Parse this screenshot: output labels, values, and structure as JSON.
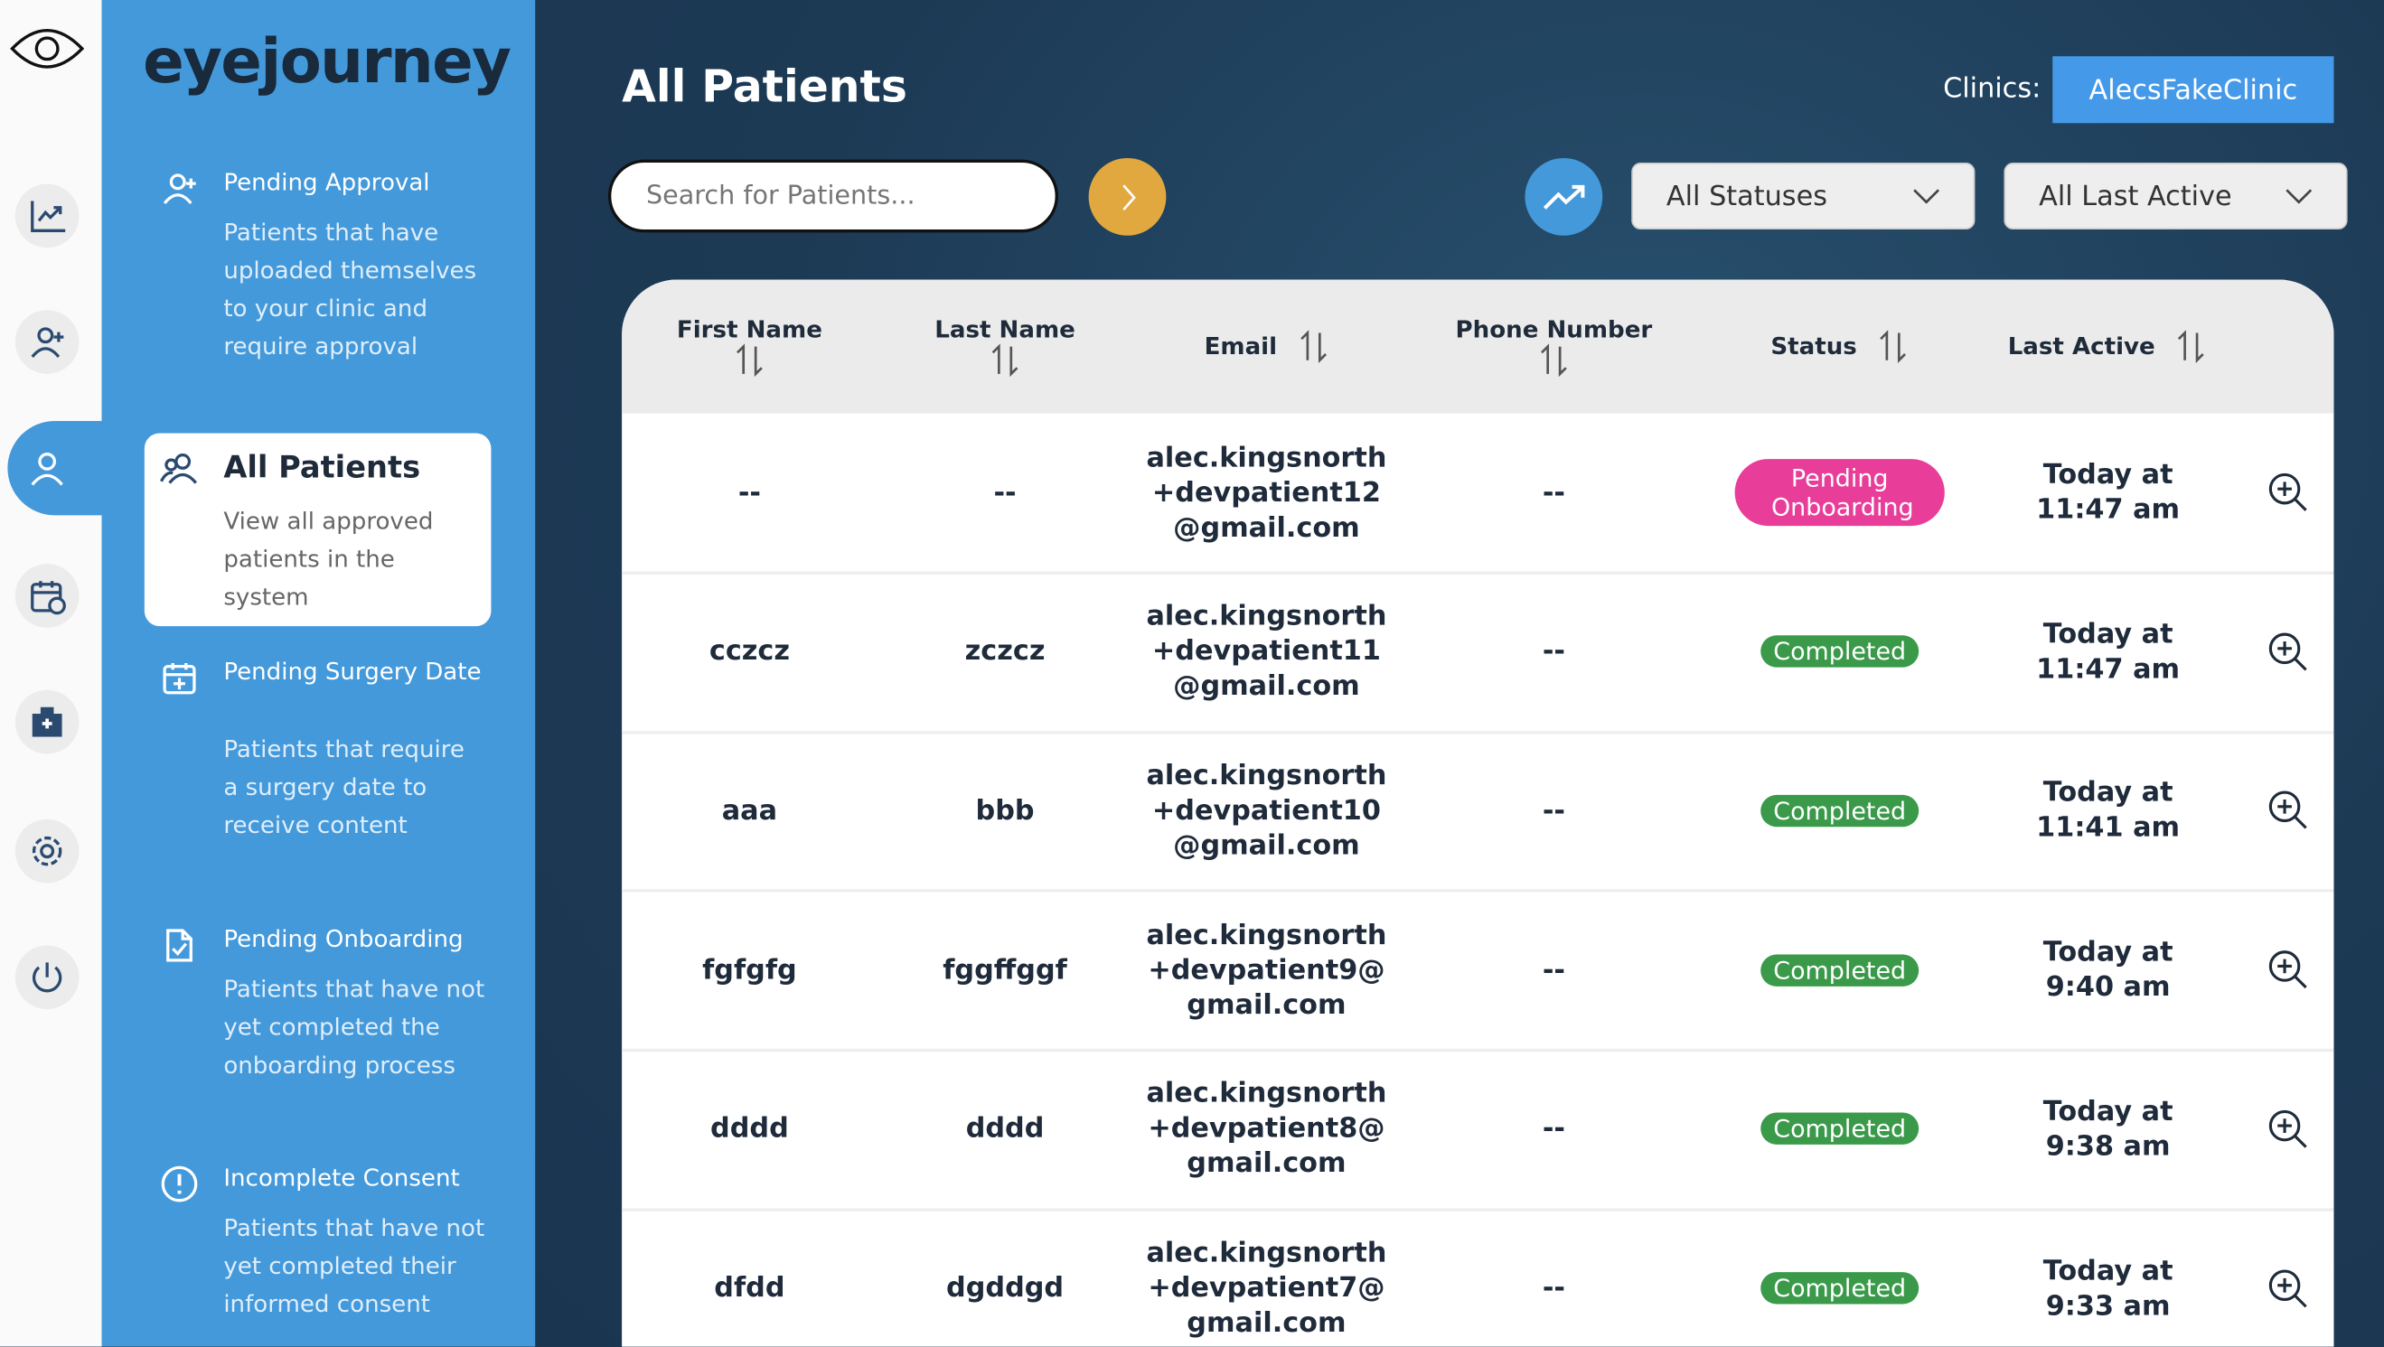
{
  "brand": "eyejourney",
  "rail": {
    "icons": [
      "analytics-icon",
      "add-user-icon",
      "user-icon",
      "calendar-clock-icon",
      "clinic-icon",
      "settings-icon",
      "power-icon"
    ],
    "active": "user-icon"
  },
  "sidebar": {
    "items": [
      {
        "title": "Pending Approval",
        "desc": "Patients that have uploaded themselves to your clinic and require approval",
        "icon": "add-user-icon"
      },
      {
        "title": "All Patients",
        "desc": "View all approved patients in the system",
        "icon": "users-icon",
        "selected": true
      },
      {
        "title": "Pending Surgery Date",
        "desc": "Patients that require a surgery date to receive content",
        "icon": "calendar-plus-icon"
      },
      {
        "title": "Pending Onboarding",
        "desc": "Patients that have not yet completed the onboarding process",
        "icon": "file-check-icon"
      },
      {
        "title": "Incomplete Consent",
        "desc": "Patients that have not yet completed their informed consent",
        "icon": "alert-circle-icon"
      }
    ]
  },
  "header": {
    "title": "All Patients",
    "clinics_label": "Clinics:",
    "clinic": "AlecsFakeClinic"
  },
  "toolbar": {
    "search_placeholder": "Search for Patients...",
    "status_filter": "All Statuses",
    "last_active_filter": "All Last Active"
  },
  "colors": {
    "sidebar": "#4499db",
    "background": "#1d3a55",
    "pending": "#e83e9a",
    "completed": "#3a9a4a",
    "go": "#e0a83e"
  },
  "table": {
    "columns": [
      "First Name",
      "Last Name",
      "Email",
      "Phone Number",
      "Status",
      "Last Active"
    ],
    "rows": [
      {
        "first": "--",
        "last": "--",
        "email": "alec.kingsnorth +devpatient12 @gmail.com",
        "phone": "--",
        "status": "Pending Onboarding",
        "active": "Today at 11:47 am"
      },
      {
        "first": "cczcz",
        "last": "zczcz",
        "email": "alec.kingsnorth +devpatient11 @gmail.com",
        "phone": "--",
        "status": "Completed",
        "active": "Today at 11:47 am"
      },
      {
        "first": "aaa",
        "last": "bbb",
        "email": "alec.kingsnorth +devpatient10 @gmail.com",
        "phone": "--",
        "status": "Completed",
        "active": "Today at 11:41 am"
      },
      {
        "first": "fgfgfg",
        "last": "fggffggf",
        "email": "alec.kingsnorth +devpatient9@ gmail.com",
        "phone": "--",
        "status": "Completed",
        "active": "Today at 9:40 am"
      },
      {
        "first": "dddd",
        "last": "dddd",
        "email": "alec.kingsnorth +devpatient8@ gmail.com",
        "phone": "--",
        "status": "Completed",
        "active": "Today at 9:38 am"
      },
      {
        "first": "dfdd",
        "last": "dgddgd",
        "email": "alec.kingsnorth +devpatient7@ gmail.com",
        "phone": "--",
        "status": "Completed",
        "active": "Today at 9:33 am"
      }
    ]
  }
}
